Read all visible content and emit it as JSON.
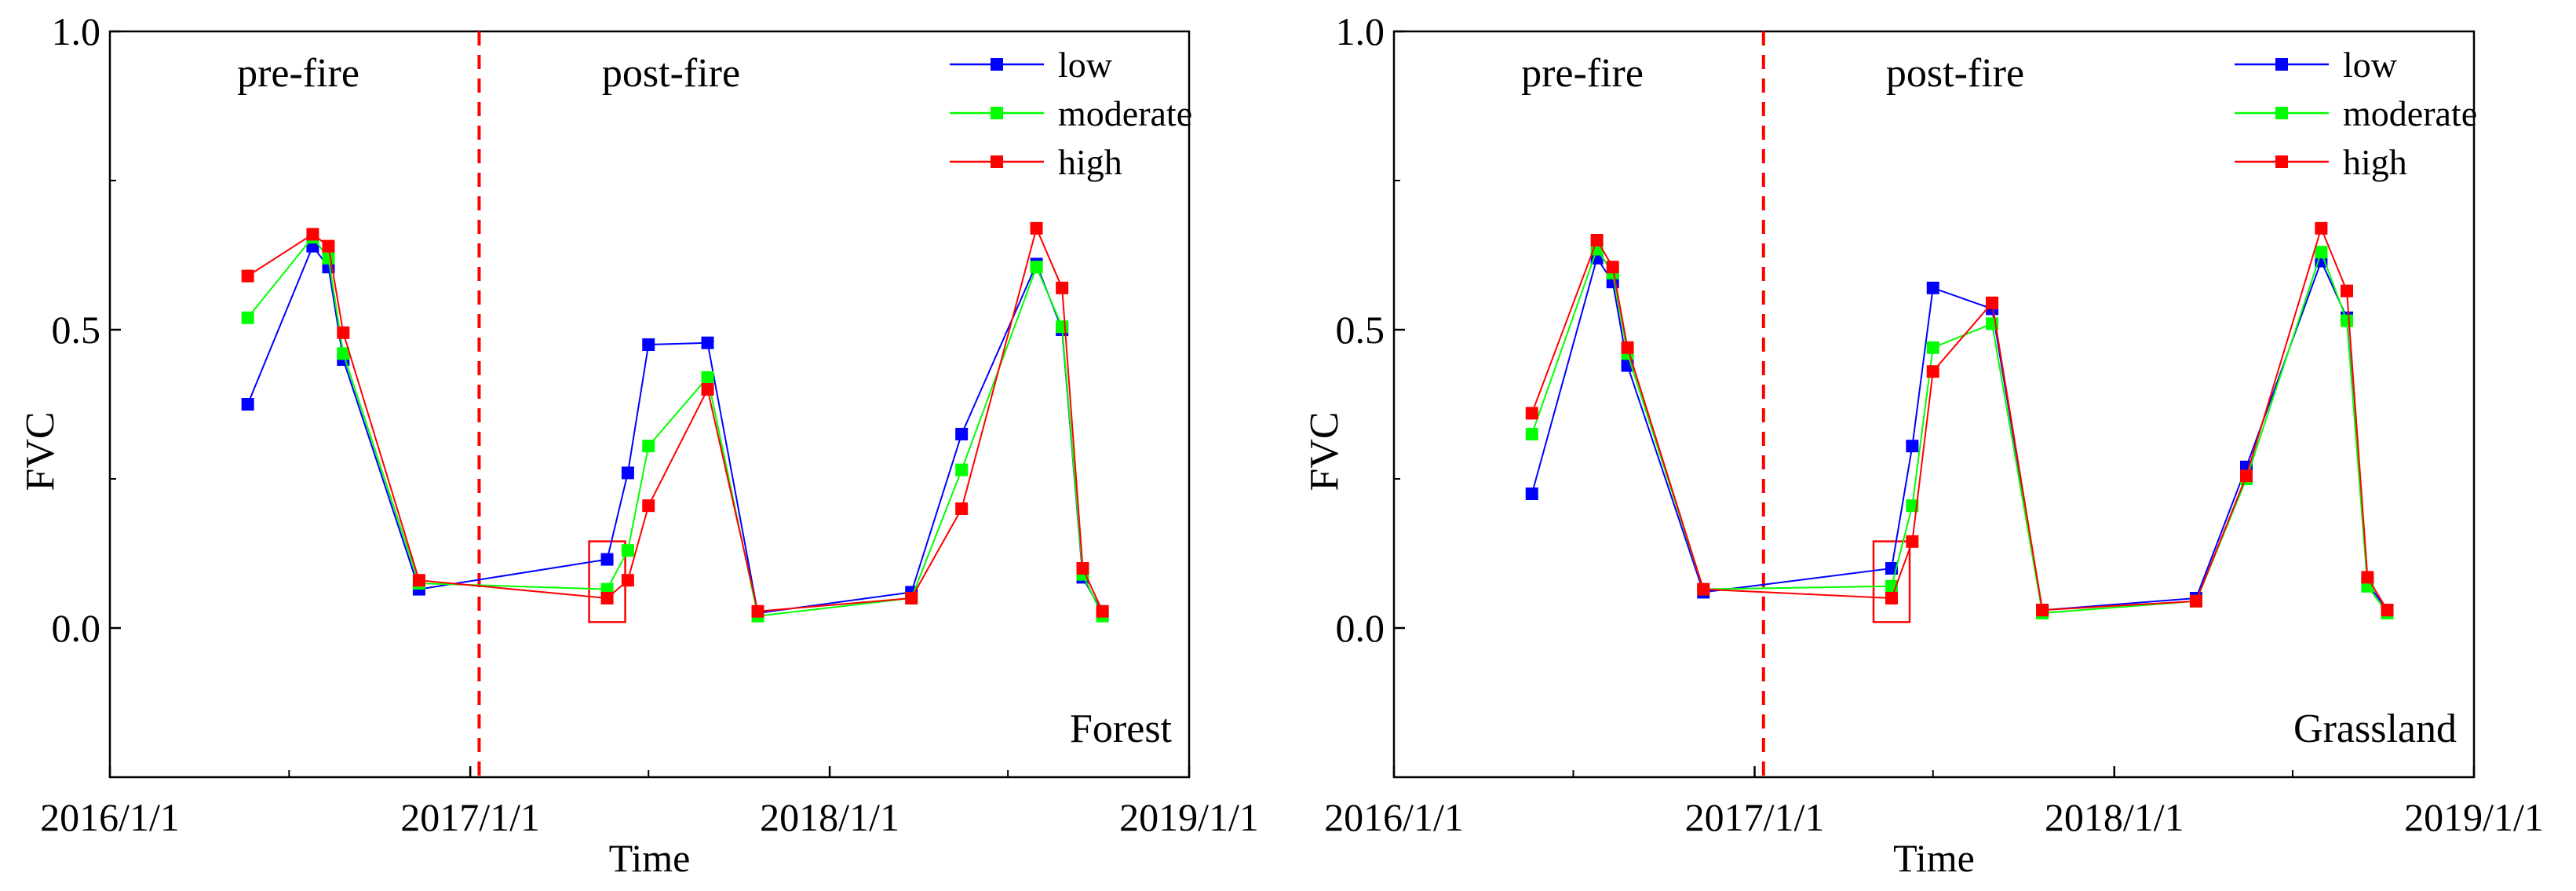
{
  "colors": {
    "low": "#0000ff",
    "moderate": "#00ff00",
    "high": "#ff0000",
    "fire_line": "#ff0000",
    "highlight_box": "#ff0000"
  },
  "chart_data": [
    {
      "type": "line",
      "panel_label": "Forest",
      "xlabel": "Time",
      "ylabel": "FVC",
      "xlim": [
        "2016/1/1",
        "2019/1/1"
      ],
      "ylim": [
        -0.25,
        1.0
      ],
      "x_tick_labels": [
        "2016/1/1",
        "2017/1/1",
        "2018/1/1",
        "2019/1/1"
      ],
      "y_tick_labels": [
        "0.0",
        "0.5",
        "1.0"
      ],
      "y_ticks": [
        0.0,
        0.5,
        1.0
      ],
      "phase_labels": {
        "pre": "pre-fire",
        "post": "post-fire"
      },
      "fire_date": "2017/1/10",
      "legend": [
        "low",
        "moderate",
        "high"
      ],
      "legend_position": "top-right",
      "highlight": {
        "x": "2017/5/20",
        "y_range": [
          0.01,
          0.14
        ]
      },
      "series": [
        {
          "name": "low",
          "points": [
            [
              "2016/5/20",
              0.375
            ],
            [
              "2016/7/25",
              0.64
            ],
            [
              "2016/8/10",
              0.605
            ],
            [
              "2016/8/25",
              0.45
            ],
            [
              "2016/11/10",
              0.065
            ],
            [
              "2017/5/20",
              0.115
            ],
            [
              "2017/6/10",
              0.26
            ],
            [
              "2017/7/1",
              0.475
            ],
            [
              "2017/8/30",
              0.478
            ],
            [
              "2017/10/20",
              0.025
            ],
            [
              "2018/3/25",
              0.06
            ],
            [
              "2018/5/15",
              0.325
            ],
            [
              "2018/7/30",
              0.61
            ],
            [
              "2018/8/25",
              0.5
            ],
            [
              "2018/9/15",
              0.085
            ],
            [
              "2018/10/5",
              0.025
            ]
          ]
        },
        {
          "name": "moderate",
          "points": [
            [
              "2016/5/20",
              0.52
            ],
            [
              "2016/7/25",
              0.655
            ],
            [
              "2016/8/10",
              0.62
            ],
            [
              "2016/8/25",
              0.46
            ],
            [
              "2016/11/10",
              0.075
            ],
            [
              "2017/5/20",
              0.065
            ],
            [
              "2017/6/10",
              0.13
            ],
            [
              "2017/7/1",
              0.305
            ],
            [
              "2017/8/30",
              0.42
            ],
            [
              "2017/10/20",
              0.02
            ],
            [
              "2018/3/25",
              0.05
            ],
            [
              "2018/5/15",
              0.265
            ],
            [
              "2018/7/30",
              0.605
            ],
            [
              "2018/8/25",
              0.505
            ],
            [
              "2018/9/15",
              0.09
            ],
            [
              "2018/10/5",
              0.02
            ]
          ]
        },
        {
          "name": "high",
          "points": [
            [
              "2016/5/20",
              0.59
            ],
            [
              "2016/7/25",
              0.66
            ],
            [
              "2016/8/10",
              0.64
            ],
            [
              "2016/8/25",
              0.495
            ],
            [
              "2016/11/10",
              0.08
            ],
            [
              "2017/5/20",
              0.05
            ],
            [
              "2017/6/10",
              0.08
            ],
            [
              "2017/7/1",
              0.205
            ],
            [
              "2017/8/30",
              0.4
            ],
            [
              "2017/10/20",
              0.028
            ],
            [
              "2018/3/25",
              0.05
            ],
            [
              "2018/5/15",
              0.2
            ],
            [
              "2018/7/30",
              0.67
            ],
            [
              "2018/8/25",
              0.57
            ],
            [
              "2018/9/15",
              0.1
            ],
            [
              "2018/10/5",
              0.028
            ]
          ]
        }
      ]
    },
    {
      "type": "line",
      "panel_label": "Grassland",
      "xlabel": "Time",
      "ylabel": "FVC",
      "xlim": [
        "2016/1/1",
        "2019/1/1"
      ],
      "ylim": [
        -0.25,
        1.0
      ],
      "x_tick_labels": [
        "2016/1/1",
        "2017/1/1",
        "2018/1/1",
        "2019/1/1"
      ],
      "y_tick_labels": [
        "0.0",
        "0.5",
        "1.0"
      ],
      "y_ticks": [
        0.0,
        0.5,
        1.0
      ],
      "phase_labels": {
        "pre": "pre-fire",
        "post": "post-fire"
      },
      "fire_date": "2017/1/10",
      "legend": [
        "low",
        "moderate",
        "high"
      ],
      "legend_position": "top-right",
      "highlight": {
        "x": "2017/5/20",
        "y_range": [
          0.01,
          0.14
        ]
      },
      "series": [
        {
          "name": "low",
          "points": [
            [
              "2016/5/20",
              0.225
            ],
            [
              "2016/7/25",
              0.62
            ],
            [
              "2016/8/10",
              0.58
            ],
            [
              "2016/8/25",
              0.44
            ],
            [
              "2016/11/10",
              0.06
            ],
            [
              "2017/5/20",
              0.1
            ],
            [
              "2017/6/10",
              0.305
            ],
            [
              "2017/7/1",
              0.57
            ],
            [
              "2017/8/30",
              0.535
            ],
            [
              "2017/10/20",
              0.03
            ],
            [
              "2018/3/25",
              0.05
            ],
            [
              "2018/5/15",
              0.27
            ],
            [
              "2018/7/30",
              0.615
            ],
            [
              "2018/8/25",
              0.52
            ],
            [
              "2018/9/15",
              0.075
            ],
            [
              "2018/10/5",
              0.03
            ]
          ]
        },
        {
          "name": "moderate",
          "points": [
            [
              "2016/5/20",
              0.325
            ],
            [
              "2016/7/25",
              0.635
            ],
            [
              "2016/8/10",
              0.595
            ],
            [
              "2016/8/25",
              0.46
            ],
            [
              "2016/11/10",
              0.065
            ],
            [
              "2017/5/20",
              0.07
            ],
            [
              "2017/6/10",
              0.205
            ],
            [
              "2017/7/1",
              0.47
            ],
            [
              "2017/8/30",
              0.51
            ],
            [
              "2017/10/20",
              0.025
            ],
            [
              "2018/3/25",
              0.045
            ],
            [
              "2018/5/15",
              0.25
            ],
            [
              "2018/7/30",
              0.63
            ],
            [
              "2018/8/25",
              0.515
            ],
            [
              "2018/9/15",
              0.07
            ],
            [
              "2018/10/5",
              0.025
            ]
          ]
        },
        {
          "name": "high",
          "points": [
            [
              "2016/5/20",
              0.36
            ],
            [
              "2016/7/25",
              0.65
            ],
            [
              "2016/8/10",
              0.605
            ],
            [
              "2016/8/25",
              0.47
            ],
            [
              "2016/11/10",
              0.065
            ],
            [
              "2017/5/20",
              0.05
            ],
            [
              "2017/6/10",
              0.145
            ],
            [
              "2017/7/1",
              0.43
            ],
            [
              "2017/8/30",
              0.545
            ],
            [
              "2017/10/20",
              0.03
            ],
            [
              "2018/3/25",
              0.045
            ],
            [
              "2018/5/15",
              0.255
            ],
            [
              "2018/7/30",
              0.67
            ],
            [
              "2018/8/25",
              0.565
            ],
            [
              "2018/9/15",
              0.085
            ],
            [
              "2018/10/5",
              0.03
            ]
          ]
        }
      ]
    }
  ]
}
